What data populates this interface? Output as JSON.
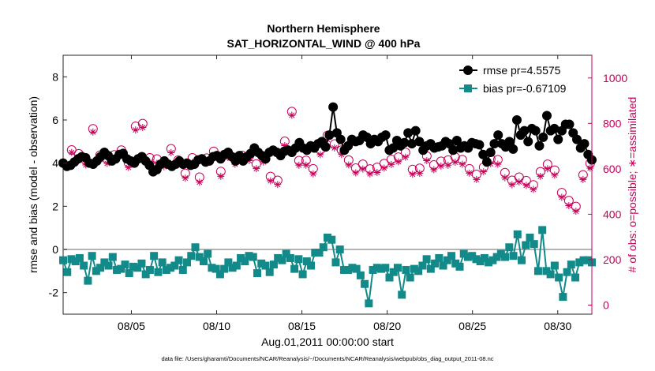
{
  "chart_data": {
    "type": "line",
    "title": "Northern Hemisphere",
    "subtitle": "SAT_HORIZONTAL_WIND @ 400 hPa",
    "xlabel": "Aug.01,2011 00:00:00 start",
    "ylabel_left": "rmse and bias (model - observation)",
    "ylabel_right": "# of obs: o=possible; ∗=assimilated",
    "footer": "data file: /Users/gharamti/Documents/NCAR/Reanalysis/~/Documents/NCAR/Reanalysis/webpub/obs_diag_output_2011-08.nc",
    "x_range_days": [
      1,
      32
    ],
    "x_ticks": [
      {
        "value": 5,
        "label": "08/05"
      },
      {
        "value": 10,
        "label": "08/10"
      },
      {
        "value": 15,
        "label": "08/15"
      },
      {
        "value": 20,
        "label": "08/20"
      },
      {
        "value": 25,
        "label": "08/25"
      },
      {
        "value": 30,
        "label": "08/30"
      }
    ],
    "ylim_left": [
      -3,
      9
    ],
    "y_ticks_left": [
      "-2",
      "0",
      "2",
      "4",
      "6",
      "8"
    ],
    "ylim_right": [
      -40,
      1100
    ],
    "y_ticks_right": [
      "0",
      "200",
      "400",
      "600",
      "800",
      "1000"
    ],
    "legend": [
      {
        "label": "rmse pr=4.5575",
        "color": "#000000"
      },
      {
        "label": "bias pr=-0.67109",
        "color": "#138a8a"
      }
    ],
    "colors": {
      "rmse": "#000000",
      "bias": "#138a8a",
      "obs": "#c8005a",
      "zero_line": "#b4b4b4"
    },
    "series": {
      "rmse": [
        4.0,
        3.85,
        3.9,
        4.05,
        4.2,
        4.3,
        4.25,
        4.0,
        3.95,
        4.1,
        4.3,
        4.5,
        4.35,
        4.1,
        4.2,
        4.4,
        4.45,
        4.2,
        4.1,
        4.0,
        4.2,
        4.3,
        4.1,
        3.9,
        3.6,
        3.7,
        3.95,
        4.1,
        3.95,
        3.85,
        3.95,
        4.1,
        3.95,
        4.0,
        3.9,
        3.95,
        4.15,
        4.2,
        4.05,
        4.1,
        4.3,
        4.35,
        4.2,
        4.4,
        4.5,
        4.3,
        4.1,
        4.35,
        4.1,
        4.3,
        4.45,
        4.7,
        4.5,
        4.35,
        4.2,
        4.5,
        4.6,
        4.5,
        4.35,
        4.55,
        4.6,
        4.5,
        4.7,
        4.95,
        4.7,
        4.6,
        4.8,
        4.7,
        4.9,
        5.0,
        4.75,
        5.3,
        6.6,
        5.4,
        5.1,
        4.6,
        4.8,
        5.1,
        5.0,
        5.05,
        5.3,
        5.2,
        4.9,
        5.1,
        5.0,
        5.2,
        5.3,
        4.6,
        4.7,
        5.05,
        4.8,
        4.95,
        5.4,
        4.9,
        5.5,
        5.0,
        4.6,
        4.8,
        4.9,
        4.7,
        4.75,
        4.8,
        5.0,
        4.9,
        4.6,
        5.05,
        4.7,
        4.8,
        4.7,
        4.95,
        4.9,
        4.85,
        4.4,
        4.05,
        4.5,
        4.9,
        5.3,
        4.9,
        4.75,
        5.0,
        4.65,
        6.0,
        5.3,
        5.5,
        5.0,
        5.6,
        5.5,
        4.8,
        5.2,
        6.2,
        5.5,
        5.6,
        5.1,
        5.5,
        5.8,
        5.8,
        5.4,
        5.1,
        4.7,
        4.9,
        4.4,
        4.15
      ],
      "bias": [
        -0.5,
        -1.05,
        -0.45,
        -0.55,
        -0.4,
        -0.75,
        -1.45,
        -0.3,
        -1.0,
        -0.85,
        -0.6,
        -0.75,
        -0.35,
        -0.95,
        -0.9,
        -0.7,
        -1.1,
        -0.8,
        -0.85,
        -0.65,
        -1.15,
        -0.95,
        -0.3,
        -1.05,
        -0.6,
        -0.95,
        -0.85,
        -0.75,
        -0.5,
        -0.95,
        -0.6,
        -0.3,
        0.1,
        -0.35,
        -0.55,
        -0.2,
        -0.85,
        -0.9,
        -1.15,
        -0.9,
        -0.6,
        -0.85,
        -0.75,
        -0.4,
        -0.55,
        -0.3,
        -0.35,
        -1.1,
        -0.65,
        -0.75,
        -1.05,
        -0.7,
        -0.4,
        -0.5,
        -0.2,
        -0.4,
        -0.9,
        -0.45,
        -1.15,
        -0.55,
        -0.75,
        -0.15,
        -0.15,
        0.1,
        0.55,
        0.45,
        -0.6,
        0.0,
        -0.95,
        -0.95,
        -0.85,
        -0.9,
        -1.2,
        -1.6,
        -2.5,
        -0.95,
        -0.85,
        -0.9,
        -0.85,
        -1.3,
        -1.05,
        -0.85,
        -2.1,
        -0.95,
        -1.3,
        -0.9,
        -1.0,
        -0.75,
        -0.45,
        -0.9,
        -0.65,
        -0.4,
        -0.75,
        -0.5,
        -0.3,
        -0.65,
        -0.8,
        -0.2,
        -0.35,
        -0.3,
        -0.45,
        -0.55,
        -0.4,
        -0.6,
        -0.5,
        -0.35,
        -0.2,
        -0.35,
        0.1,
        -0.3,
        0.7,
        -0.5,
        0.2,
        0.55,
        0.25,
        -1.0,
        0.9,
        -1.0,
        -1.15,
        -0.75,
        -1.3,
        -2.2,
        -1.05,
        -0.7,
        -1.3,
        -0.6,
        -0.5,
        -0.5,
        -0.6
      ],
      "obs_possible": [
        683,
        666,
        637,
        776,
        660,
        643,
        661,
        682,
        626,
        787,
        799,
        648,
        643,
        627,
        688,
        638,
        580,
        648,
        563,
        647,
        677,
        588,
        670,
        640,
        659,
        656,
        621,
        649,
        566,
        549,
        721,
        852,
        636,
        637,
        600,
        683,
        747,
        709,
        682,
        638,
        603,
        620,
        599,
        606,
        623,
        641,
        651,
        672,
        597,
        602,
        656,
        617,
        633,
        638,
        651,
        640,
        600,
        575,
        607,
        643,
        640,
        583,
        549,
        563,
        548,
        529,
        587,
        620,
        594,
        495,
        460,
        434,
        573,
        624
      ],
      "obs_assimilated": [
        672,
        652,
        617,
        762,
        641,
        624,
        641,
        664,
        606,
        771,
        782,
        629,
        624,
        609,
        671,
        618,
        559,
        629,
        541,
        627,
        657,
        567,
        650,
        620,
        640,
        636,
        601,
        630,
        547,
        531,
        702,
        836,
        616,
        616,
        578,
        662,
        730,
        692,
        663,
        617,
        582,
        599,
        578,
        584,
        603,
        619,
        631,
        651,
        576,
        580,
        636,
        596,
        612,
        616,
        629,
        620,
        581,
        553,
        587,
        622,
        620,
        561,
        530,
        542,
        527,
        509,
        567,
        600,
        572,
        475,
        438,
        413,
        553,
        603
      ]
    }
  }
}
